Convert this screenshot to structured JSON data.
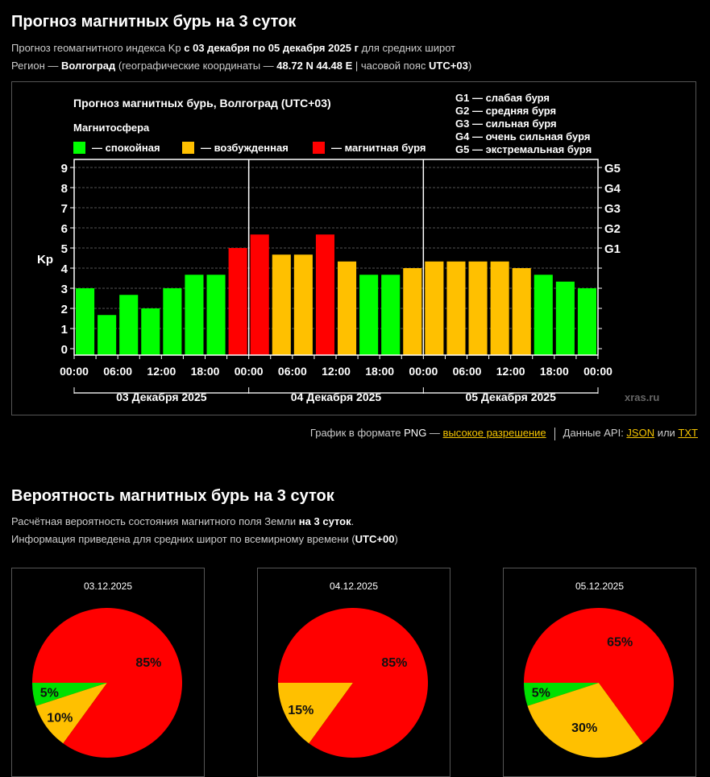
{
  "header": {
    "title": "Прогноз магнитных бурь на 3 суток",
    "line1": {
      "pre": "Прогноз геомагнитного индекса Kp ",
      "bold": "с 03 декабря по 05 декабря 2025 г",
      "post": " для средних широт"
    },
    "line2": {
      "pre": "Регион — ",
      "city": "Волгоград",
      "mid": " (географические координаты — ",
      "coords": "48.72 N 44.48 E",
      "mid2": " | часовой пояс ",
      "tz": "UTC+03",
      "post": ")"
    }
  },
  "kp_chart": {
    "title": "Прогноз магнитных бурь, Волгоград (UTC+03)",
    "legend_title": "Магнитосфера",
    "legend": [
      {
        "label": "— спокойная",
        "color": "#00ff00"
      },
      {
        "label": "— возбужденная",
        "color": "#ffc000"
      },
      {
        "label": "— магнитная буря",
        "color": "#ff0000"
      }
    ],
    "g_legend": [
      "G1 — слабая буря",
      "G2 — средняя буря",
      "G3 — сильная буря",
      "G4 — очень сильная буря",
      "G5 — экстремальная буря"
    ],
    "watermark": "xras.ru"
  },
  "chart_data": [
    {
      "type": "bar",
      "title": "Прогноз магнитных бурь, Волгоград (UTC+03)",
      "ylabel": "Kp",
      "ylim": [
        0,
        9
      ],
      "yticks": [
        0,
        1,
        2,
        3,
        4,
        5,
        6,
        7,
        8,
        9
      ],
      "right_ticks": [
        {
          "value": 5,
          "label": "G1"
        },
        {
          "value": 6,
          "label": "G2"
        },
        {
          "value": 7,
          "label": "G3"
        },
        {
          "value": 8,
          "label": "G4"
        },
        {
          "value": 9,
          "label": "G5"
        }
      ],
      "grid": true,
      "x_tick_labels": [
        "00:00",
        "06:00",
        "12:00",
        "18:00",
        "00:00",
        "06:00",
        "12:00",
        "18:00",
        "00:00",
        "06:00",
        "12:00",
        "18:00",
        "00:00"
      ],
      "day_labels": [
        "03 Декабря 2025",
        "04 Декабря 2025",
        "05 Декабря 2025"
      ],
      "values": [
        3.0,
        1.67,
        2.67,
        2.0,
        3.0,
        3.67,
        3.67,
        5.0,
        5.67,
        4.67,
        4.67,
        5.67,
        4.33,
        3.67,
        3.67,
        4.0,
        4.33,
        4.33,
        4.33,
        4.33,
        4.0,
        3.67,
        3.33,
        3.0
      ],
      "levels": [
        "quiet",
        "quiet",
        "quiet",
        "quiet",
        "quiet",
        "quiet",
        "quiet",
        "storm",
        "storm",
        "active",
        "active",
        "storm",
        "active",
        "quiet",
        "quiet",
        "active",
        "active",
        "active",
        "active",
        "active",
        "active",
        "quiet",
        "quiet",
        "quiet"
      ],
      "level_colors": {
        "quiet": "#00ff00",
        "active": "#ffc000",
        "storm": "#ff0000"
      }
    },
    {
      "type": "pie",
      "title": "03.12.2025",
      "slices": [
        {
          "label": "5%",
          "value": 5,
          "color": "#00e000"
        },
        {
          "label": "10%",
          "value": 10,
          "color": "#ffc000"
        },
        {
          "label": "85%",
          "value": 85,
          "color": "#ff0000"
        }
      ]
    },
    {
      "type": "pie",
      "title": "04.12.2025",
      "slices": [
        {
          "label": "",
          "value": 0,
          "color": "#00e000"
        },
        {
          "label": "15%",
          "value": 15,
          "color": "#ffc000"
        },
        {
          "label": "85%",
          "value": 85,
          "color": "#ff0000"
        }
      ]
    },
    {
      "type": "pie",
      "title": "05.12.2025",
      "slices": [
        {
          "label": "5%",
          "value": 5,
          "color": "#00e000"
        },
        {
          "label": "30%",
          "value": 30,
          "color": "#ffc000"
        },
        {
          "label": "65%",
          "value": 65,
          "color": "#ff0000"
        }
      ]
    }
  ],
  "footer": {
    "png_text": "График в формате ",
    "png_word": "PNG",
    "dash": " — ",
    "hires_link": "высокое разрешение",
    "api_text": "Данные API: ",
    "json_link": "JSON",
    "or": " или ",
    "txt_link": "TXT"
  },
  "prob": {
    "title": "Вероятность магнитных бурь на 3 суток",
    "line1": {
      "pre": "Расчётная вероятность состояния магнитного поля Земли ",
      "bold": "на 3 суток",
      "post": "."
    },
    "line2": {
      "pre": "Информация приведена для средних широт по всемирному времени (",
      "bold": "UTC+00",
      "post": ")"
    }
  }
}
